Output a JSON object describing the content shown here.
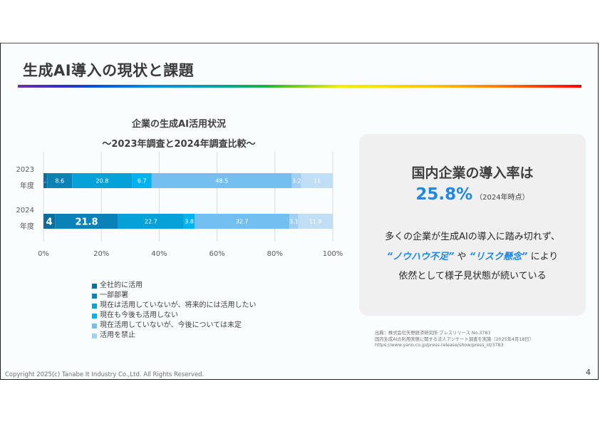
{
  "slide": {
    "title": "生成AI導入の現状と課題",
    "page_number": "4",
    "copyright": "Copyright 2025(c) Tanabe It Industry Co.,Ltd. All Rights Reserved."
  },
  "chart_data": {
    "type": "bar",
    "orientation": "horizontal",
    "stacked": true,
    "title": "企業の生成AI活用状況",
    "subtitle": "～2023年調査と2024年調査比較～",
    "categories": [
      {
        "line1": "2023",
        "line2": "年度"
      },
      {
        "line1": "2024",
        "line2": "年度"
      }
    ],
    "xlim": [
      0,
      100
    ],
    "x_ticks": [
      "0%",
      "20%",
      "40%",
      "60%",
      "80%",
      "100%"
    ],
    "grid": true,
    "legend_position": "bottom-left",
    "series": [
      {
        "name": "全社的に活用",
        "color": "#0b6f9c",
        "values": [
          1.3,
          4
        ],
        "labels": [
          "1.3",
          "4"
        ]
      },
      {
        "name": "一部部署",
        "color": "#0a82b7",
        "values": [
          8.6,
          21.8
        ],
        "labels": [
          "8.6",
          "21.8"
        ]
      },
      {
        "name": "現在は活用していないが、将来的には活用したい",
        "color": "#05a1d8",
        "values": [
          20.8,
          22.7
        ],
        "labels": [
          "20.8",
          "22.7"
        ]
      },
      {
        "name": "現在も今後も活用しない",
        "color": "#00b2ee",
        "values": [
          6.7,
          3.8
        ],
        "labels": [
          "6.7",
          "3.8"
        ]
      },
      {
        "name": "現在活用していないが、今後については未定",
        "color": "#73c0f0",
        "values": [
          48.5,
          32.7
        ],
        "labels": [
          "48.5",
          "32.7"
        ]
      },
      {
        "name": "活用を禁止",
        "color": "#a2d0f4",
        "values": [
          3.2,
          3.1
        ],
        "labels": [
          "3.2",
          "3.1"
        ]
      },
      {
        "name": "",
        "color": "#c0def6",
        "values": [
          11,
          11.8
        ],
        "labels": [
          "11",
          "11.8"
        ]
      }
    ],
    "legend_entries": [
      "全社的に活用",
      "一部部署",
      "現在は活用していないが、将来的には活用したい",
      "現在も今後も活用しない",
      "現在活用していないが、今後については未定",
      "活用を禁止"
    ],
    "emphasized_labels": [
      {
        "category": 1,
        "series": [
          0,
          1
        ]
      }
    ]
  },
  "card": {
    "heading": "国内企業の導入率は",
    "rate": "25.8%",
    "rate_note": "（2024年時点）",
    "line1": "多くの企業が生成AIの導入に踏み切れず、",
    "line2_hl1": "“ノウハウ不足”",
    "line2_mid": " や ",
    "line2_hl2": "“リスク懸念”",
    "line2_end": " により",
    "line3": "依然として様子見状態が続いている",
    "accent_color": "#1e88e5"
  },
  "source": {
    "line1": "出典：株式会社矢野経済研究所 プレスリリース No.3783",
    "line2": "国内生成AIの利用実態に関する法人アンケート調査を実施（2025年4月18日）",
    "line3": "https://www.yano.co.jp/press-release/show/press_id/3783"
  }
}
